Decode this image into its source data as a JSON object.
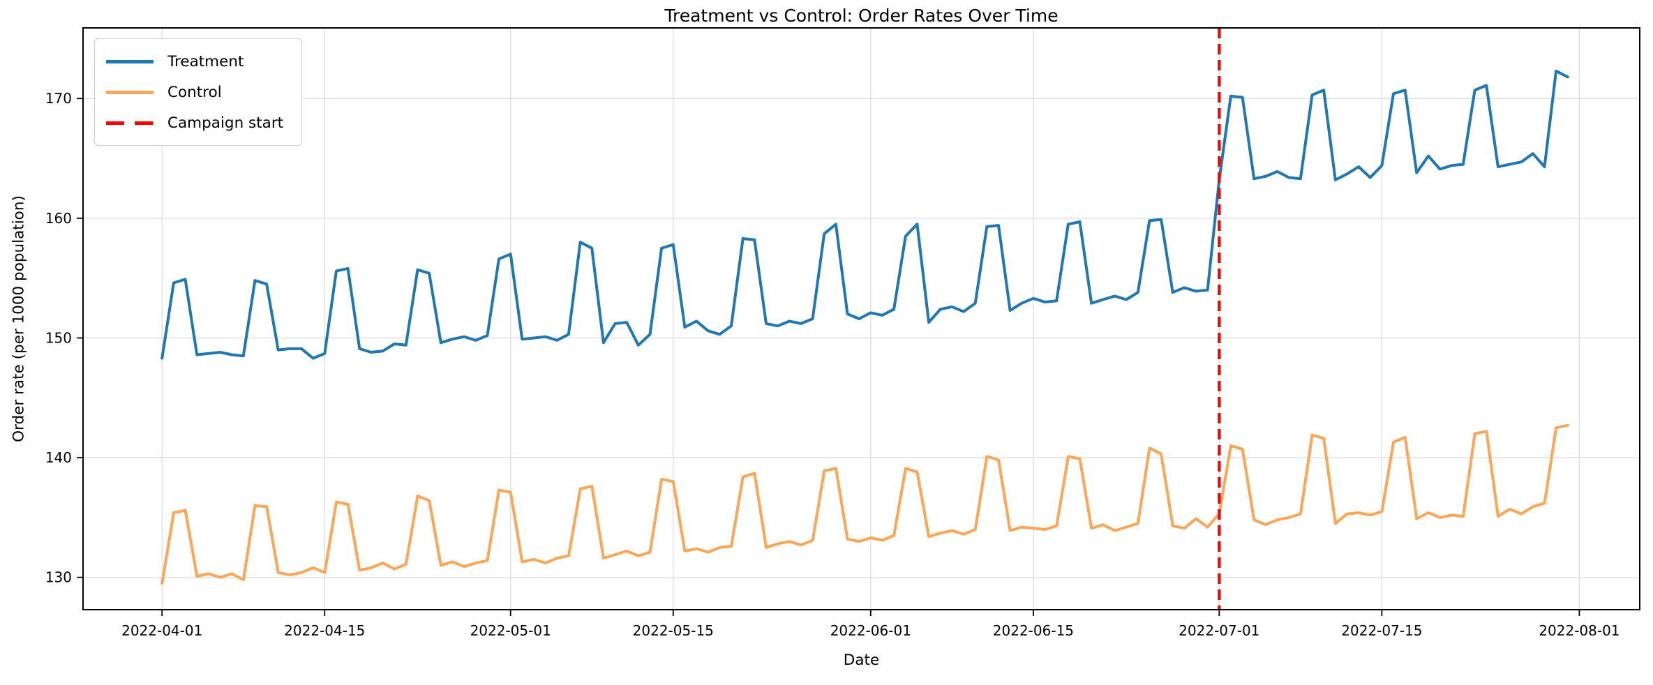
{
  "chart_data": {
    "type": "line",
    "title": "Treatment vs Control: Order Rates Over Time",
    "xlabel": "Date",
    "ylabel": "Order rate (per 1000 population)",
    "x_start_date": "2022-04-01",
    "x_frequency": "daily",
    "num_points": 122,
    "xtick_labels": [
      "2022-04-01",
      "2022-04-15",
      "2022-05-01",
      "2022-05-15",
      "2022-06-01",
      "2022-06-15",
      "2022-07-01",
      "2022-07-15",
      "2022-08-01"
    ],
    "yticks": [
      130,
      140,
      150,
      160,
      170
    ],
    "ylim": [
      127.3,
      175.9
    ],
    "xlim_days_from_start": [
      -6.8,
      127.2
    ],
    "grid": true,
    "grid_color": "#dcdcdc",
    "spine_color": "#000000",
    "legend_position": "upper left",
    "series": [
      {
        "name": "Treatment",
        "color": "#1f77b4",
        "style": "solid",
        "values": [
          148.3,
          154.6,
          154.9,
          148.6,
          148.7,
          148.8,
          148.6,
          148.5,
          154.8,
          154.5,
          149.0,
          149.1,
          149.1,
          148.3,
          148.7,
          155.6,
          155.8,
          149.1,
          148.8,
          148.9,
          149.5,
          149.4,
          155.7,
          155.4,
          149.6,
          149.9,
          150.1,
          149.8,
          150.2,
          156.6,
          157.0,
          149.9,
          150.0,
          150.1,
          149.8,
          150.3,
          158.0,
          157.5,
          149.6,
          151.2,
          151.3,
          149.4,
          150.3,
          157.5,
          157.8,
          150.9,
          151.4,
          150.6,
          150.3,
          151.0,
          158.3,
          158.2,
          151.2,
          151.0,
          151.4,
          151.2,
          151.6,
          158.7,
          159.5,
          152.0,
          151.6,
          152.1,
          151.9,
          152.4,
          158.5,
          159.5,
          151.3,
          152.4,
          152.6,
          152.2,
          152.9,
          159.3,
          159.4,
          152.3,
          152.9,
          153.3,
          153.0,
          153.1,
          159.5,
          159.7,
          152.9,
          153.2,
          153.5,
          153.2,
          153.8,
          159.8,
          159.9,
          153.8,
          154.2,
          153.9,
          154.0,
          163.2,
          170.2,
          170.1,
          163.3,
          163.5,
          163.9,
          163.4,
          163.3,
          170.3,
          170.7,
          163.2,
          163.7,
          164.3,
          163.4,
          164.4,
          170.4,
          170.7,
          163.8,
          165.2,
          164.1,
          164.4,
          164.5,
          170.7,
          171.1,
          164.3,
          164.5,
          164.7,
          165.4,
          164.3,
          172.3,
          171.8
        ]
      },
      {
        "name": "Control",
        "color": "#ffa556",
        "style": "solid",
        "values": [
          129.5,
          135.4,
          135.6,
          130.1,
          130.3,
          130.0,
          130.3,
          129.8,
          136.0,
          135.9,
          130.4,
          130.2,
          130.4,
          130.8,
          130.4,
          136.3,
          136.1,
          130.6,
          130.8,
          131.2,
          130.7,
          131.1,
          136.8,
          136.4,
          131.0,
          131.3,
          130.9,
          131.2,
          131.4,
          137.3,
          137.1,
          131.3,
          131.5,
          131.2,
          131.6,
          131.8,
          137.4,
          137.6,
          131.6,
          131.9,
          132.2,
          131.8,
          132.1,
          138.2,
          138.0,
          132.2,
          132.4,
          132.1,
          132.5,
          132.6,
          138.4,
          138.7,
          132.5,
          132.8,
          133.0,
          132.7,
          133.1,
          138.9,
          139.1,
          133.2,
          133.0,
          133.3,
          133.1,
          133.5,
          139.1,
          138.8,
          133.4,
          133.7,
          133.9,
          133.6,
          134.0,
          140.1,
          139.8,
          133.9,
          134.2,
          134.1,
          134.0,
          134.3,
          140.1,
          139.9,
          134.1,
          134.4,
          133.9,
          134.2,
          134.5,
          140.8,
          140.3,
          134.3,
          134.1,
          134.9,
          134.2,
          135.3,
          141.0,
          140.7,
          134.8,
          134.4,
          134.8,
          135.0,
          135.3,
          141.9,
          141.6,
          134.5,
          135.3,
          135.4,
          135.2,
          135.5,
          141.3,
          141.7,
          134.9,
          135.4,
          135.0,
          135.2,
          135.1,
          142.0,
          142.2,
          135.1,
          135.7,
          135.3,
          135.9,
          136.2,
          142.5,
          142.7
        ]
      }
    ],
    "vline": {
      "label": "Campaign start",
      "date": "2022-07-01",
      "color": "#ff0000",
      "style": "dashed"
    },
    "legend": [
      {
        "label": "Treatment",
        "color": "#1f77b4",
        "dash": false
      },
      {
        "label": "Control",
        "color": "#ffa556",
        "dash": false
      },
      {
        "label": "Campaign start",
        "color": "#ff0000",
        "dash": true
      }
    ]
  }
}
